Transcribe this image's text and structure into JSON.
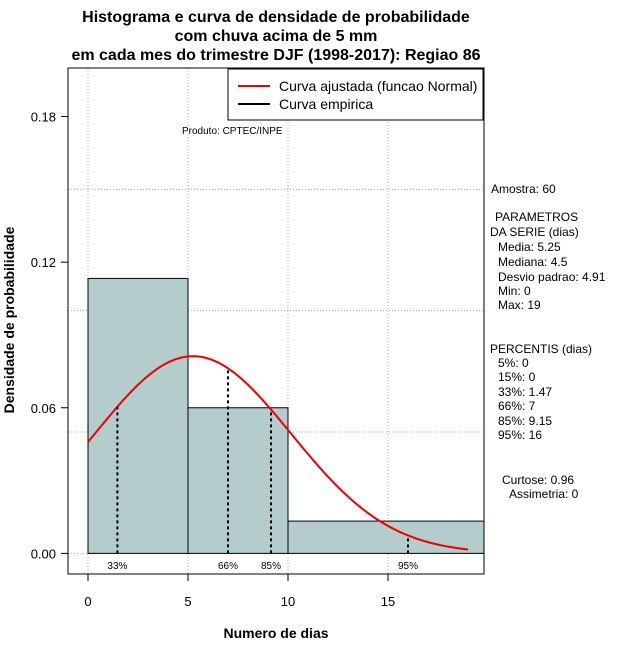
{
  "chart_data": {
    "type": "bar",
    "title_lines": [
      "Histograma e curva de densidade de probabilidade",
      "com chuva acima de 5 mm",
      "em cada mes do trimestre DJF (1998-2017): Regiao 86"
    ],
    "xlabel": "Numero de dias",
    "ylabel": "Densidade de probabilidade",
    "xlim": [
      -1,
      19.8
    ],
    "ylim": [
      -0.0085,
      0.2
    ],
    "x_ticks": [
      0,
      5,
      10,
      15
    ],
    "y_ticks": [
      0.0,
      0.06,
      0.12,
      0.18
    ],
    "y_tick_labels": [
      "0.00",
      "0.06",
      "0.12",
      "0.18"
    ],
    "grid": true,
    "histogram": {
      "bins": [
        [
          0,
          5
        ],
        [
          5,
          10
        ],
        [
          10,
          20
        ]
      ],
      "density": [
        0.1133,
        0.06,
        0.0133
      ],
      "fill": "#b5cccc"
    },
    "normal_curve": {
      "name": "Curva ajustada (funcao Normal)",
      "mean": 5.25,
      "sd": 4.91,
      "x_range": [
        0,
        19
      ],
      "color": "#ee0000"
    },
    "empirical_curve": {
      "name": "Curva empirica",
      "color": "#000000"
    },
    "percentile_markers": [
      {
        "label": "33%",
        "x": 1.47
      },
      {
        "label": "66%",
        "x": 7
      },
      {
        "label": "85%",
        "x": 9.15
      },
      {
        "label": "95%",
        "x": 16
      }
    ],
    "product_label": "Produto: CPTEC/INPE",
    "legend_position": "top-right"
  },
  "stats_panel": {
    "amostra": "Amostra: 60",
    "param_header_1": "PARAMETROS",
    "param_header_2": "DA SERIE (dias)",
    "media": "Media: 5.25",
    "mediana": "Mediana: 4.5",
    "desvio": "Desvio padrao: 4.91",
    "min": "Min: 0",
    "max": "Max: 19",
    "percentis_header": "PERCENTIS (dias)",
    "p5": "5%: 0",
    "p15": "15%: 0",
    "p33": "33%: 1.47",
    "p66": "66%: 7",
    "p85": "85%: 9.15",
    "p95": "95%: 16",
    "curtose": "Curtose: 0.96",
    "assimetria": "Assimetria: 0"
  }
}
